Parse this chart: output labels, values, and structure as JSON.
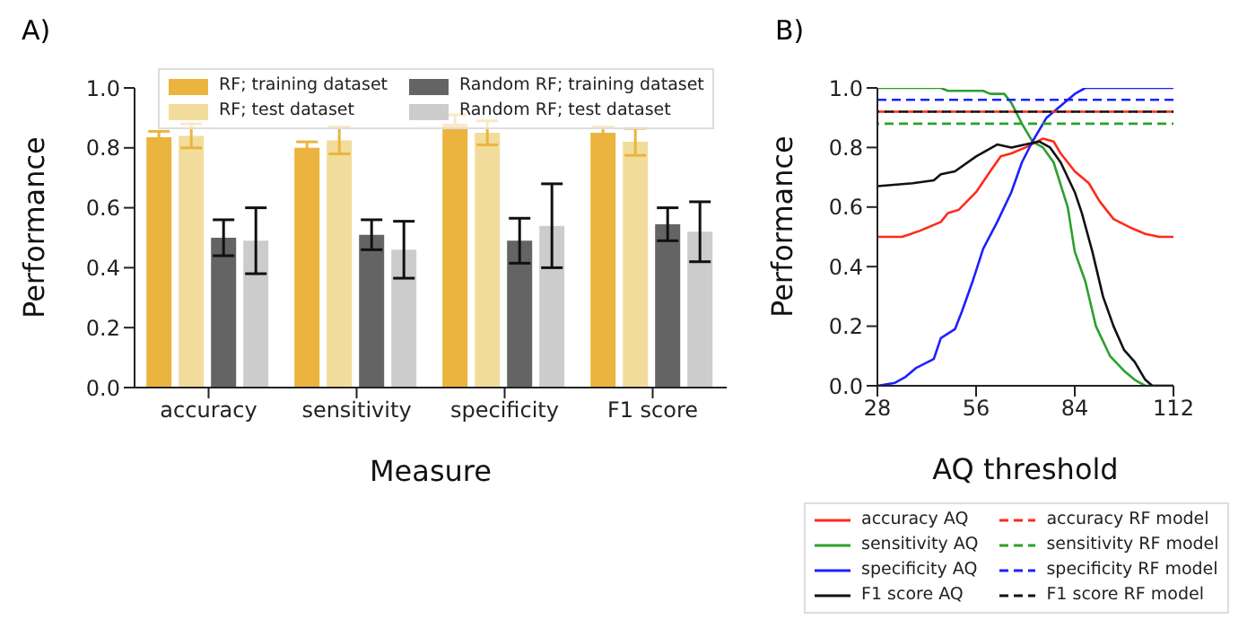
{
  "chart_data": [
    {
      "type": "bar",
      "title": "A)",
      "xlabel": "Measure",
      "ylabel": "Performance",
      "categories": [
        "accuracy",
        "sensitivity",
        "specificity",
        "F1 score"
      ],
      "series": [
        {
          "name": "RF; training dataset",
          "color": "#ebb43e",
          "values": [
            0.835,
            0.8,
            0.88,
            0.85
          ],
          "errors": [
            0.02,
            0.02,
            0.03,
            0.02
          ]
        },
        {
          "name": "RF; test dataset",
          "color": "#f2dc9b",
          "values": [
            0.84,
            0.825,
            0.85,
            0.82
          ],
          "errors": [
            0.04,
            0.045,
            0.04,
            0.045
          ]
        },
        {
          "name": "Random RF; training dataset",
          "color": "#646464",
          "values": [
            0.5,
            0.51,
            0.49,
            0.545
          ],
          "errors": [
            0.06,
            0.05,
            0.075,
            0.055
          ]
        },
        {
          "name": "Random RF; test dataset",
          "color": "#cccccc",
          "values": [
            0.49,
            0.46,
            0.54,
            0.52
          ],
          "errors": [
            0.11,
            0.095,
            0.14,
            0.1
          ]
        }
      ],
      "ylim": [
        0,
        1
      ],
      "yticks": [
        {
          "value": 0,
          "label": "0.0"
        },
        {
          "value": 0.2,
          "label": "0.2"
        },
        {
          "value": 0.4,
          "label": "0.4"
        },
        {
          "value": 0.6,
          "label": "0.6"
        },
        {
          "value": 0.8,
          "label": "0.8"
        },
        {
          "value": 1,
          "label": "1.0"
        }
      ],
      "grid": false,
      "legend": "top"
    },
    {
      "type": "line",
      "title": "B)",
      "xlabel": "AQ threshold",
      "ylabel": "Performance",
      "series": [
        {
          "name": "accuracy AQ",
          "color": "#ff2a1a",
          "x": [
            28,
            35,
            40,
            46,
            48,
            51,
            56,
            60,
            63,
            66,
            70,
            75,
            78,
            80,
            84,
            88,
            91,
            95,
            100,
            104,
            108,
            112
          ],
          "values": [
            0.5,
            0.5,
            0.52,
            0.55,
            0.58,
            0.59,
            0.65,
            0.72,
            0.77,
            0.78,
            0.8,
            0.83,
            0.82,
            0.78,
            0.72,
            0.68,
            0.62,
            0.56,
            0.53,
            0.51,
            0.5,
            0.5
          ]
        },
        {
          "name": "sensitivity AQ",
          "color": "#2ca02c",
          "x": [
            28,
            46,
            48,
            58,
            60,
            64,
            66,
            69,
            72,
            75,
            78,
            82,
            84,
            87,
            90,
            94,
            98,
            101,
            104,
            112
          ],
          "values": [
            1.0,
            1.0,
            0.99,
            0.99,
            0.98,
            0.98,
            0.95,
            0.88,
            0.82,
            0.8,
            0.75,
            0.6,
            0.45,
            0.35,
            0.2,
            0.1,
            0.05,
            0.02,
            0,
            0
          ]
        },
        {
          "name": "specificity AQ",
          "color": "#1f1fff",
          "x": [
            28,
            33,
            36,
            39,
            44,
            46,
            50,
            52,
            55,
            58,
            62,
            66,
            69,
            72,
            76,
            80,
            84,
            87,
            112
          ],
          "values": [
            0,
            0.01,
            0.03,
            0.06,
            0.09,
            0.16,
            0.19,
            0.25,
            0.35,
            0.46,
            0.55,
            0.65,
            0.75,
            0.82,
            0.9,
            0.94,
            0.98,
            1.0,
            1.0
          ]
        },
        {
          "name": "F1 score AQ",
          "color": "#111111",
          "x": [
            28,
            38,
            44,
            46,
            50,
            56,
            62,
            66,
            70,
            74,
            77,
            80,
            84,
            86,
            89,
            92,
            95,
            98,
            101,
            104,
            106,
            112
          ],
          "values": [
            0.67,
            0.68,
            0.69,
            0.71,
            0.72,
            0.77,
            0.81,
            0.8,
            0.81,
            0.82,
            0.8,
            0.75,
            0.65,
            0.58,
            0.45,
            0.3,
            0.2,
            0.12,
            0.08,
            0.02,
            0,
            0
          ]
        },
        {
          "name": "accuracy RF model",
          "color": "#ff2a1a",
          "line_style": "dashed",
          "x": [
            28,
            112
          ],
          "values": [
            0.92,
            0.92
          ]
        },
        {
          "name": "sensitivity RF model",
          "color": "#2ca02c",
          "line_style": "dashed",
          "x": [
            28,
            112
          ],
          "values": [
            0.88,
            0.88
          ]
        },
        {
          "name": "specificity RF model",
          "color": "#1f1fff",
          "line_style": "dashed",
          "x": [
            28,
            112
          ],
          "values": [
            0.96,
            0.96
          ]
        },
        {
          "name": "F1 score RF model",
          "color": "#111111",
          "line_style": "dashed",
          "x": [
            28,
            112
          ],
          "values": [
            0.92,
            0.92
          ]
        }
      ],
      "xlim": [
        28,
        112
      ],
      "xticks": [
        28,
        56,
        84,
        112
      ],
      "ylim": [
        0,
        1
      ],
      "yticks": [
        {
          "value": 0,
          "label": "0.0"
        },
        {
          "value": 0.2,
          "label": "0.2"
        },
        {
          "value": 0.4,
          "label": "0.4"
        },
        {
          "value": 0.6,
          "label": "0.6"
        },
        {
          "value": 0.8,
          "label": "0.8"
        },
        {
          "value": 1,
          "label": "1.0"
        }
      ],
      "grid": false,
      "legend": "bottom",
      "marker": "none"
    }
  ]
}
